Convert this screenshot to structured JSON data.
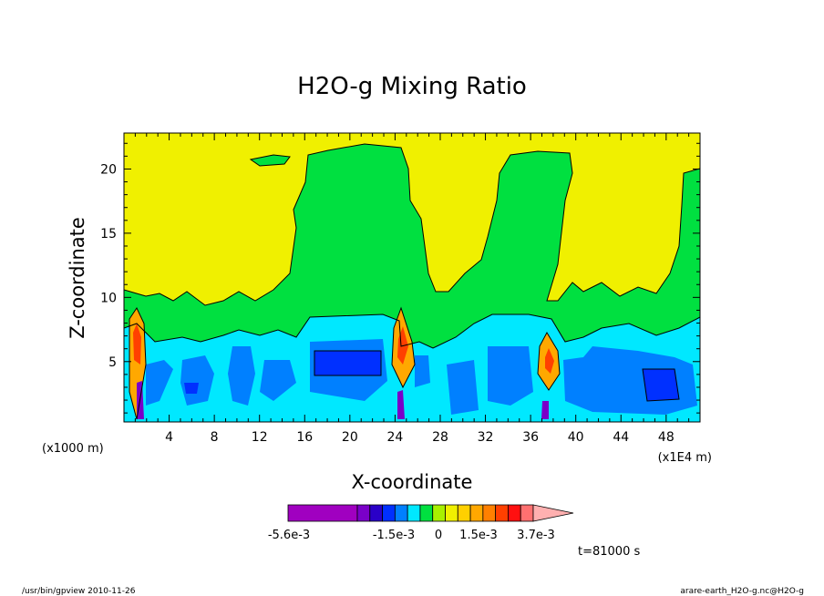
{
  "chart_data": {
    "type": "heatmap",
    "title": "H2O-g Mixing Ratio",
    "xlabel": "X-coordinate",
    "ylabel": "Z-coordinate",
    "x_scale_label_left": "(x1000 m)",
    "x_scale_label_right": "(x1E4 m)",
    "x_ticks": [
      "4",
      "8",
      "12",
      "16",
      "20",
      "24",
      "28",
      "32",
      "36",
      "40",
      "44",
      "48"
    ],
    "y_ticks": [
      "5",
      "10",
      "15",
      "20"
    ],
    "xlim": [
      0,
      51
    ],
    "ylim": [
      0.3,
      22.8
    ],
    "colorbar": {
      "labels": [
        "-5.6e-3",
        "-1.5e-3",
        "0",
        "1.5e-3",
        "3.7e-3"
      ],
      "colors": [
        "#a000c0",
        "#a000c0",
        "#7a00c8",
        "#2a00c8",
        "#0030ff",
        "#0080ff",
        "#00e8ff",
        "#00e040",
        "#a8f000",
        "#f0f000",
        "#ffd000",
        "#ffa800",
        "#ff8000",
        "#ff4000",
        "#ff1010",
        "#ff7070",
        "#ffb0b0"
      ]
    },
    "time_label": "t=81000 s"
  },
  "footer": {
    "left": "/usr/bin/gpview  2010-11-26",
    "right": "arare-earth_H2O-g.nc@H2O-g"
  }
}
